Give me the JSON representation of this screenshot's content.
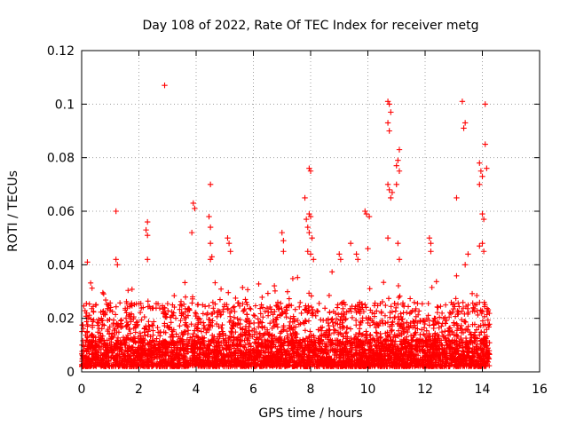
{
  "chart_data": {
    "type": "scatter",
    "title": "Day 108 of 2022, Rate Of TEC Index for receiver metg",
    "xlabel": "GPS time / hours",
    "ylabel": "ROTI / TECUs",
    "xlim": [
      0,
      16
    ],
    "ylim": [
      0,
      0.12
    ],
    "xticks": [
      0,
      2,
      4,
      6,
      8,
      10,
      12,
      14,
      16
    ],
    "yticks": [
      0,
      0.02,
      0.04,
      0.06,
      0.08,
      0.1,
      0.12
    ],
    "xtick_labels": [
      "0",
      "2",
      "4",
      "6",
      "8",
      "10",
      "12",
      "14",
      "16"
    ],
    "ytick_labels": [
      "0",
      "0.02",
      "0.04",
      "0.06",
      "0.08",
      "0.1",
      "0.12"
    ],
    "grid": true,
    "marker": "plus",
    "color": "#ff0000",
    "points": [
      [
        2.9,
        0.107
      ],
      [
        10.7,
        0.101
      ],
      [
        10.75,
        0.1
      ],
      [
        10.8,
        0.097
      ],
      [
        10.7,
        0.093
      ],
      [
        10.75,
        0.09
      ],
      [
        13.3,
        0.101
      ],
      [
        13.4,
        0.093
      ],
      [
        13.35,
        0.091
      ],
      [
        14.1,
        0.1
      ],
      [
        14.1,
        0.085
      ],
      [
        14.15,
        0.076
      ],
      [
        11.1,
        0.083
      ],
      [
        11.05,
        0.079
      ],
      [
        11.0,
        0.077
      ],
      [
        11.1,
        0.075
      ],
      [
        13.9,
        0.078
      ],
      [
        13.95,
        0.075
      ],
      [
        14.0,
        0.073
      ],
      [
        13.9,
        0.07
      ],
      [
        7.95,
        0.076
      ],
      [
        8.0,
        0.075
      ],
      [
        4.5,
        0.07
      ],
      [
        10.7,
        0.07
      ],
      [
        10.75,
        0.068
      ],
      [
        10.85,
        0.067
      ],
      [
        10.8,
        0.065
      ],
      [
        11.0,
        0.07
      ],
      [
        7.8,
        0.065
      ],
      [
        13.1,
        0.065
      ],
      [
        3.9,
        0.063
      ],
      [
        3.95,
        0.061
      ],
      [
        1.2,
        0.06
      ],
      [
        9.9,
        0.06
      ],
      [
        9.95,
        0.059
      ],
      [
        10.05,
        0.058
      ],
      [
        7.95,
        0.059
      ],
      [
        8.0,
        0.058
      ],
      [
        7.85,
        0.057
      ],
      [
        4.45,
        0.058
      ],
      [
        2.3,
        0.056
      ],
      [
        2.25,
        0.053
      ],
      [
        2.3,
        0.051
      ],
      [
        4.5,
        0.054
      ],
      [
        14.0,
        0.059
      ],
      [
        14.05,
        0.057
      ],
      [
        5.1,
        0.05
      ],
      [
        5.15,
        0.048
      ],
      [
        7.0,
        0.052
      ],
      [
        7.05,
        0.049
      ],
      [
        7.9,
        0.054
      ],
      [
        7.95,
        0.052
      ],
      [
        8.05,
        0.05
      ],
      [
        3.85,
        0.052
      ],
      [
        12.15,
        0.05
      ],
      [
        12.2,
        0.048
      ],
      [
        10.7,
        0.05
      ],
      [
        11.05,
        0.048
      ],
      [
        14.0,
        0.048
      ],
      [
        13.9,
        0.047
      ],
      [
        9.4,
        0.048
      ],
      [
        4.5,
        0.048
      ],
      [
        4.55,
        0.043
      ],
      [
        4.5,
        0.042
      ],
      [
        5.2,
        0.045
      ],
      [
        7.05,
        0.045
      ],
      [
        0.2,
        0.041
      ],
      [
        1.2,
        0.042
      ],
      [
        1.25,
        0.04
      ],
      [
        2.3,
        0.042
      ],
      [
        7.9,
        0.045
      ],
      [
        8.0,
        0.044
      ],
      [
        8.1,
        0.042
      ],
      [
        9.0,
        0.044
      ],
      [
        9.05,
        0.042
      ],
      [
        9.6,
        0.044
      ],
      [
        9.65,
        0.042
      ],
      [
        10.0,
        0.046
      ],
      [
        11.1,
        0.042
      ],
      [
        12.2,
        0.045
      ],
      [
        13.4,
        0.04
      ],
      [
        14.05,
        0.045
      ],
      [
        13.5,
        0.044
      ]
    ]
  }
}
